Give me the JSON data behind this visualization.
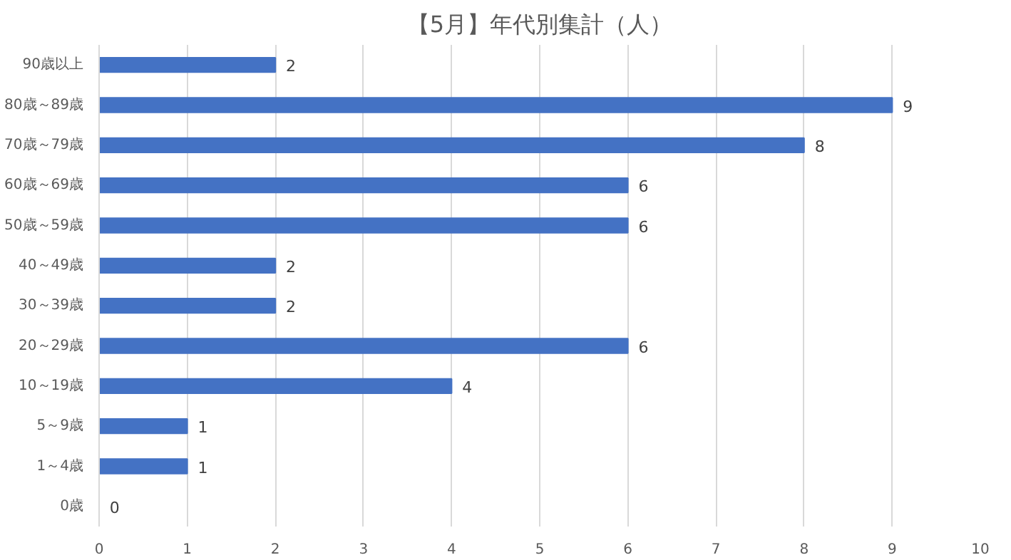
{
  "chart_data": {
    "type": "bar",
    "orientation": "horizontal",
    "title": "【5月】年代別集計（人）",
    "categories": [
      "90歳以上",
      "80歳～89歳",
      "70歳～79歳",
      "60歳～69歳",
      "50歳～59歳",
      "40～49歳",
      "30～39歳",
      "20～29歳",
      "10～19歳",
      "5～9歳",
      "1～4歳",
      "0歳"
    ],
    "values": [
      2,
      9,
      8,
      6,
      6,
      2,
      2,
      6,
      4,
      1,
      1,
      0
    ],
    "color": "#4472c4",
    "xlim": [
      0,
      10
    ],
    "xticks": [
      0,
      1,
      2,
      3,
      4,
      5,
      6,
      7,
      8,
      9,
      10
    ],
    "grid": "x",
    "data_labels": true
  }
}
